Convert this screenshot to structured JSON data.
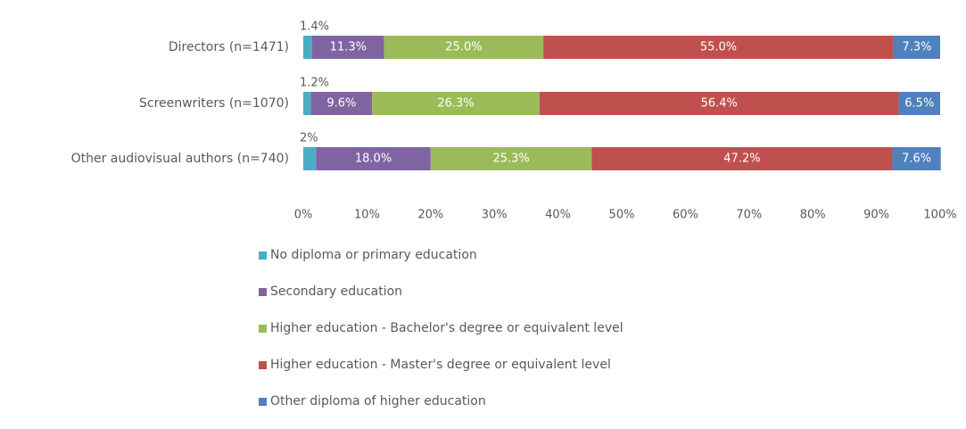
{
  "chart_data": {
    "type": "bar",
    "orientation": "horizontal",
    "stacked": true,
    "categories": [
      "Directors (n=1471)",
      "Screenwriters (n=1070)",
      "Other audiovisual authors (n=740)"
    ],
    "series": [
      {
        "name": "No diploma or primary education",
        "color": "#4bacc6",
        "values": [
          1.4,
          1.2,
          2.0
        ],
        "labels": [
          "1.4%",
          "1.2%",
          "2%"
        ]
      },
      {
        "name": "Secondary education",
        "color": "#8064a2",
        "values": [
          11.3,
          9.6,
          18.0
        ],
        "labels": [
          "11.3%",
          "9.6%",
          "18.0%"
        ]
      },
      {
        "name": "Higher education - Bachelor's degree or equivalent level",
        "color": "#9bbb59",
        "values": [
          25.0,
          26.3,
          25.3
        ],
        "labels": [
          "25.0%",
          "26.3%",
          "25.3%"
        ]
      },
      {
        "name": "Higher education - Master's degree or equivalent level",
        "color": "#c0504d",
        "values": [
          55.0,
          56.4,
          47.2
        ],
        "labels": [
          "55.0%",
          "56.4%",
          "47.2%"
        ]
      },
      {
        "name": "Other diploma of higher education",
        "color": "#4f81bd",
        "values": [
          7.3,
          6.5,
          7.6
        ],
        "labels": [
          "7.3%",
          "6.5%",
          "7.6%"
        ]
      }
    ],
    "xlim": [
      0,
      100
    ],
    "x_ticks": [
      "0%",
      "10%",
      "20%",
      "30%",
      "40%",
      "50%",
      "60%",
      "70%",
      "80%",
      "90%",
      "100%"
    ],
    "grid": false,
    "legend_position": "bottom"
  }
}
